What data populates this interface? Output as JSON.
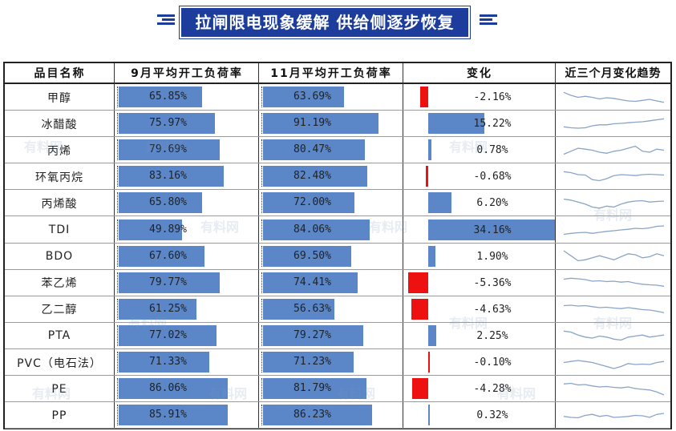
{
  "title": "拉闸限电现象缓解 供给侧逐步恢复",
  "colors": {
    "bar": "#5b87c8",
    "negative": "#ee1111",
    "title_bg": "#1d3d9c",
    "spark": "#8aa4c8"
  },
  "chart_data": {
    "type": "table",
    "headers": [
      "品目名称",
      "9月平均开工负荷率",
      "11月平均开工负荷率",
      "变化",
      "近三个月变化趋势"
    ],
    "rows": [
      {
        "name": "甲醇",
        "sep": "65.85%",
        "nov": "63.69%",
        "chg": "-2.16%",
        "sep_v": 65.85,
        "nov_v": 63.69,
        "chg_v": -2.16,
        "trend": [
          0.75,
          0.6,
          0.5,
          0.55,
          0.5,
          0.42,
          0.48,
          0.45,
          0.38,
          0.32,
          0.3,
          0.35,
          0.4,
          0.32,
          0.25
        ]
      },
      {
        "name": "冰醋酸",
        "sep": "75.97%",
        "nov": "91.19%",
        "chg": "15.22%",
        "sep_v": 75.97,
        "nov_v": 91.19,
        "chg_v": 15.22,
        "trend": [
          0.35,
          0.3,
          0.28,
          0.3,
          0.4,
          0.45,
          0.45,
          0.5,
          0.52,
          0.55,
          0.58,
          0.6,
          0.65,
          0.7,
          0.75
        ]
      },
      {
        "name": "丙烯",
        "sep": "79.69%",
        "nov": "80.47%",
        "chg": "0.78%",
        "sep_v": 79.69,
        "nov_v": 80.47,
        "chg_v": 0.78,
        "trend": [
          0.3,
          0.45,
          0.6,
          0.55,
          0.5,
          0.4,
          0.35,
          0.45,
          0.5,
          0.6,
          0.7,
          0.45,
          0.4,
          0.55,
          0.5
        ]
      },
      {
        "name": "环氧丙烷",
        "sep": "83.16%",
        "nov": "82.48%",
        "chg": "-0.68%",
        "sep_v": 83.16,
        "nov_v": 82.48,
        "chg_v": -0.68,
        "trend": [
          0.75,
          0.7,
          0.6,
          0.58,
          0.35,
          0.3,
          0.4,
          0.55,
          0.6,
          0.58,
          0.55,
          0.6,
          0.62,
          0.6,
          0.58
        ]
      },
      {
        "name": "丙烯酸",
        "sep": "65.80%",
        "nov": "72.00%",
        "chg": "6.20%",
        "sep_v": 65.8,
        "nov_v": 72.0,
        "chg_v": 6.2,
        "trend": [
          0.7,
          0.65,
          0.55,
          0.45,
          0.3,
          0.25,
          0.35,
          0.3,
          0.45,
          0.55,
          0.6,
          0.62,
          0.55,
          0.58,
          0.6
        ]
      },
      {
        "name": "TDI",
        "sep": "49.89%",
        "nov": "84.06%",
        "chg": "34.16%",
        "sep_v": 49.89,
        "nov_v": 84.06,
        "chg_v": 34.16,
        "trend": [
          0.3,
          0.35,
          0.38,
          0.4,
          0.35,
          0.4,
          0.45,
          0.48,
          0.52,
          0.55,
          0.6,
          0.58,
          0.62,
          0.7,
          0.72
        ]
      },
      {
        "name": "BDO",
        "sep": "67.60%",
        "nov": "69.50%",
        "chg": "1.90%",
        "sep_v": 67.6,
        "nov_v": 69.5,
        "chg_v": 1.9,
        "trend": [
          0.8,
          0.55,
          0.3,
          0.35,
          0.45,
          0.55,
          0.45,
          0.35,
          0.5,
          0.65,
          0.6,
          0.45,
          0.5,
          0.65,
          0.55
        ]
      },
      {
        "name": "苯乙烯",
        "sep": "79.77%",
        "nov": "74.41%",
        "chg": "-5.36%",
        "sep_v": 79.77,
        "nov_v": 74.41,
        "chg_v": -5.36,
        "trend": [
          0.7,
          0.75,
          0.72,
          0.68,
          0.6,
          0.62,
          0.58,
          0.6,
          0.55,
          0.58,
          0.5,
          0.45,
          0.42,
          0.4,
          0.35
        ]
      },
      {
        "name": "乙二醇",
        "sep": "61.25%",
        "nov": "56.63%",
        "chg": "-4.63%",
        "sep_v": 61.25,
        "nov_v": 56.63,
        "chg_v": -4.63,
        "trend": [
          0.7,
          0.72,
          0.68,
          0.7,
          0.65,
          0.6,
          0.62,
          0.58,
          0.55,
          0.6,
          0.55,
          0.5,
          0.48,
          0.42,
          0.35
        ]
      },
      {
        "name": "PTA",
        "sep": "77.02%",
        "nov": "79.27%",
        "chg": "2.25%",
        "sep_v": 77.02,
        "nov_v": 79.27,
        "chg_v": 2.25,
        "trend": [
          0.75,
          0.7,
          0.55,
          0.45,
          0.4,
          0.5,
          0.45,
          0.35,
          0.3,
          0.45,
          0.5,
          0.55,
          0.45,
          0.5,
          0.55
        ]
      },
      {
        "name": "PVC（电石法）",
        "sep": "71.33%",
        "nov": "71.23%",
        "chg": "-0.10%",
        "sep_v": 71.33,
        "nov_v": 71.23,
        "chg_v": -0.1,
        "trend": [
          0.5,
          0.55,
          0.6,
          0.55,
          0.5,
          0.4,
          0.3,
          0.2,
          0.3,
          0.45,
          0.4,
          0.42,
          0.4,
          0.5,
          0.55
        ]
      },
      {
        "name": "PE",
        "sep": "86.06%",
        "nov": "81.79%",
        "chg": "-4.28%",
        "sep_v": 86.06,
        "nov_v": 81.79,
        "chg_v": -4.28,
        "trend": [
          0.75,
          0.78,
          0.7,
          0.72,
          0.65,
          0.6,
          0.62,
          0.58,
          0.55,
          0.6,
          0.52,
          0.48,
          0.45,
          0.35,
          0.2
        ]
      },
      {
        "name": "PP",
        "sep": "85.91%",
        "nov": "86.23%",
        "chg": "0.32%",
        "sep_v": 85.91,
        "nov_v": 86.23,
        "chg_v": 0.32,
        "trend": [
          0.45,
          0.4,
          0.38,
          0.5,
          0.55,
          0.45,
          0.5,
          0.4,
          0.42,
          0.45,
          0.5,
          0.48,
          0.4,
          0.55,
          0.6
        ]
      }
    ]
  },
  "watermark": "有料网"
}
